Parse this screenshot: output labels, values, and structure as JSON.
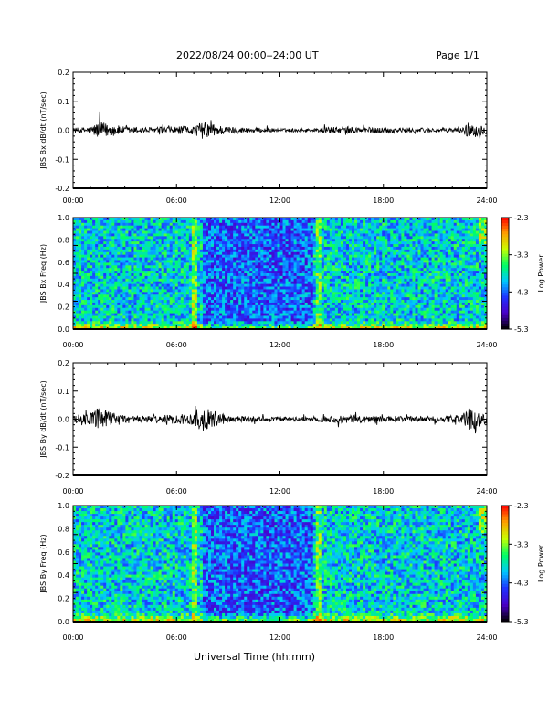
{
  "header": {
    "title": "2022/08/24  00:00‒24:00 UT",
    "page": "Page 1/1"
  },
  "xaxis": {
    "title": "Universal Time (hh:mm)",
    "ticks": [
      "00:00",
      "06:00",
      "12:00",
      "18:00",
      "24:00"
    ],
    "range_hours": [
      0,
      24
    ]
  },
  "colors": {
    "trace": "#000000",
    "background": "#ffffff",
    "colormap": [
      "#000000",
      "#4b00c8",
      "#1e32ff",
      "#00c8ff",
      "#00ff64",
      "#c8ff00",
      "#ffa000",
      "#ff0000"
    ]
  },
  "chart_data": [
    {
      "type": "line",
      "ylabel": "JBS Bx dB/dt (nT/sec)",
      "ylim": [
        -0.2,
        0.2
      ],
      "yticks": [
        "0.2",
        "0.1",
        "0.0",
        "-0.1",
        "-0.2"
      ],
      "ytick_values": [
        0.2,
        0.1,
        0.0,
        -0.1,
        -0.2
      ],
      "x_hours": [
        0,
        1,
        1.5,
        3,
        4.5,
        7,
        7.5,
        9,
        12,
        14,
        15,
        18,
        21,
        22.5,
        23,
        24
      ],
      "envelope": [
        0.008,
        0.012,
        0.03,
        0.012,
        0.01,
        0.015,
        0.03,
        0.012,
        0.006,
        0.006,
        0.012,
        0.01,
        0.008,
        0.008,
        0.03,
        0.012
      ],
      "grid": false
    },
    {
      "type": "heatmap",
      "ylabel": "JBS Bx Freq (Hz)",
      "ylim": [
        0,
        1
      ],
      "yticks": [
        "1.0",
        "0.8",
        "0.6",
        "0.4",
        "0.2",
        "0.0"
      ],
      "ytick_values": [
        1.0,
        0.8,
        0.6,
        0.4,
        0.2,
        0.0
      ],
      "colorbar": {
        "title": "Log Power",
        "ticks": [
          "-2.3",
          "-3.3",
          "-4.3",
          "-5.3"
        ],
        "tick_values": [
          -2.3,
          -3.3,
          -4.3,
          -5.3
        ],
        "range": [
          -5.3,
          -2.3
        ]
      },
      "quiet_interval_hours": [
        7.5,
        14
      ]
    },
    {
      "type": "line",
      "ylabel": "JBS By dB/dt (nT/sec)",
      "ylim": [
        -0.2,
        0.2
      ],
      "yticks": [
        "0.2",
        "0.1",
        "0.0",
        "-0.1",
        "-0.2"
      ],
      "ytick_values": [
        0.2,
        0.1,
        0.0,
        -0.1,
        -0.2
      ],
      "x_hours": [
        0,
        1,
        1.5,
        3,
        4.5,
        7,
        7.2,
        9,
        12,
        14,
        16,
        18,
        21,
        22.5,
        23,
        24
      ],
      "envelope": [
        0.012,
        0.02,
        0.04,
        0.015,
        0.012,
        0.02,
        0.05,
        0.012,
        0.008,
        0.008,
        0.015,
        0.01,
        0.01,
        0.015,
        0.04,
        0.015
      ],
      "grid": false
    },
    {
      "type": "heatmap",
      "ylabel": "JBS By Freq (Hz)",
      "ylim": [
        0,
        1
      ],
      "yticks": [
        "1.0",
        "0.8",
        "0.6",
        "0.4",
        "0.2",
        "0.0"
      ],
      "ytick_values": [
        1.0,
        0.8,
        0.6,
        0.4,
        0.2,
        0.0
      ],
      "colorbar": {
        "title": "Log Power",
        "ticks": [
          "-2.3",
          "-3.3",
          "-4.3",
          "-5.3"
        ],
        "tick_values": [
          -2.3,
          -3.3,
          -4.3,
          -5.3
        ],
        "range": [
          -5.3,
          -2.3
        ]
      },
      "quiet_interval_hours": [
        7.5,
        14
      ]
    }
  ]
}
